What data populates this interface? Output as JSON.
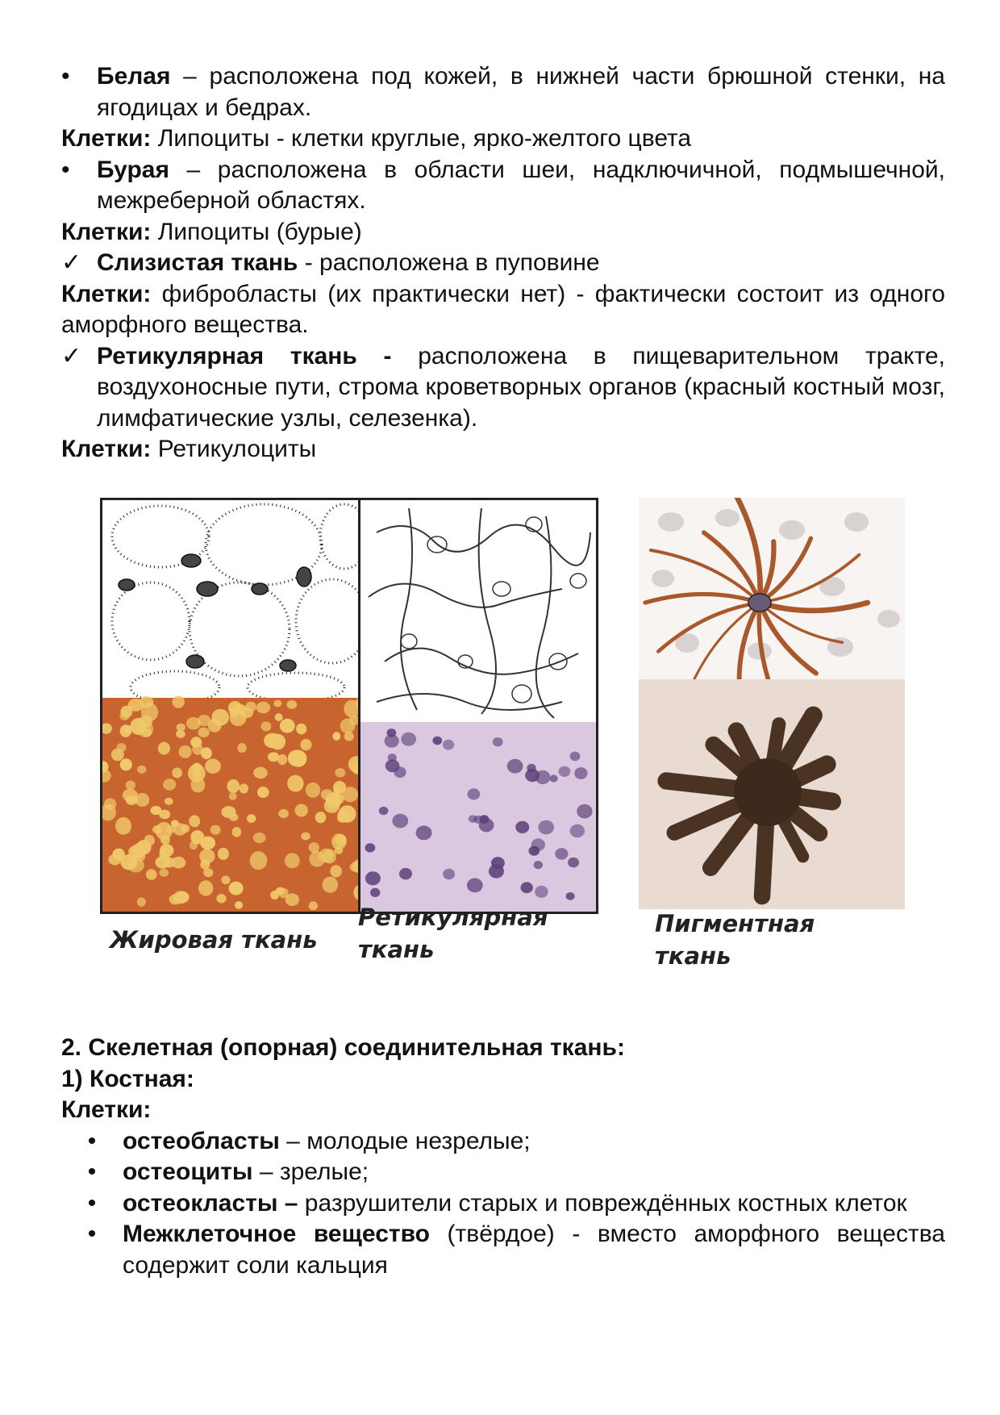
{
  "tissue_types": {
    "white": {
      "bullet": "•",
      "title": "Белая",
      "text": " – расположена под кожей, в нижней части брюшной стенки, на ягодицах и бедрах.",
      "cells_label": "Клетки:",
      "cells_text": " Липоциты - клетки круглые, ярко-желтого цвета"
    },
    "brown": {
      "bullet": "•",
      "title": "Бурая",
      "text": " – расположена в области шеи, надключичной, подмышечной, межреберной областях.",
      "cells_label": "Клетки:",
      "cells_text": " Липоциты (бурые)"
    },
    "mucous": {
      "check": "✓",
      "title": "Слизистая ткань",
      "text": " - расположена в пуповине",
      "cells_label": "Клетки:",
      "cells_text": " фибробласты (их практически нет) - фактически состоит из одного аморфного вещества."
    },
    "reticular": {
      "check": "✓",
      "title": "Ретикулярная ткань -",
      "text": " расположена в пищеварительном тракте, воздухоносные пути, строма кроветворных органов (красный костный мозг, лимфатические узлы, селезенка).",
      "cells_label": "Клетки:",
      "cells_text": " Ретикулоциты"
    }
  },
  "figure": {
    "captions": {
      "adipose": "Жировая ткань",
      "reticular_line1": "Ретикулярная",
      "reticular_line2": "ткань",
      "pigment_line1": "Пигментная",
      "pigment_line2": "ткань"
    },
    "colors": {
      "adipose_stain": "#c8642f",
      "adipose_fat": "#f0c86a",
      "reticular_stain": "#d9c8e0",
      "reticular_nucleus": "#5c3f78",
      "pigment_brown": "#a8582a",
      "pigment_bg": "#eadbd2"
    }
  },
  "section2": {
    "heading": "2.  Скелетная (опорная) соединительная ткань:",
    "subheading": "1) Костная:",
    "cells_label": "Клетки:",
    "items": [
      {
        "bullet": "•",
        "term": "остеобласты",
        "text": " – молодые незрелые;"
      },
      {
        "bullet": "•",
        "term": "остеоциты",
        "text": " – зрелые;"
      },
      {
        "bullet": "•",
        "term": "остеокласты –",
        "text": " разрушители старых и повреждённых костных клеток"
      },
      {
        "bullet": "•",
        "term": "Межклеточное вещество",
        "text": " (твёрдое) - вместо аморфного вещества содержит соли кальция"
      }
    ]
  }
}
